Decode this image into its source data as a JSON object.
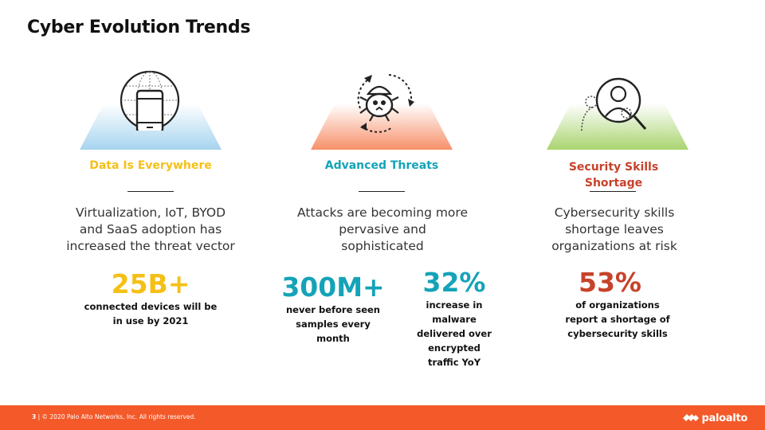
{
  "slide": {
    "title": "Cyber Evolution Trends"
  },
  "columns": [
    {
      "heading": "Data Is Everywhere",
      "description": "Virtualization, IoT, BYOD and SaaS adoption has increased the threat vector",
      "stats": [
        {
          "value": "25B+",
          "caption": "connected devices will be in use by 2021"
        }
      ],
      "icon": "globe-phone-icon"
    },
    {
      "heading": "Advanced Threats",
      "description": "Attacks are becoming more pervasive and sophisticated",
      "stats": [
        {
          "value": "300M+",
          "caption": "never before seen samples every month"
        },
        {
          "value": "32%",
          "caption": "increase in malware delivered over encrypted traffic YoY"
        }
      ],
      "icon": "malware-bug-icon"
    },
    {
      "heading": "Security Skills Shortage",
      "description": "Cybersecurity skills shortage leaves organizations at risk",
      "stats": [
        {
          "value": "53%",
          "caption": "of organizations report a shortage of cybersecurity skills"
        }
      ],
      "icon": "magnifier-person-icon"
    }
  ],
  "colors": {
    "yellow": "#f5c016",
    "teal": "#14a3b8",
    "red": "#c6422a",
    "footer": "#f4592a"
  },
  "footer": {
    "page_number": "3",
    "copyright": "| © 2020 Palo Alto Networks, Inc. All rights reserved.",
    "logo_text": "paloalto"
  }
}
